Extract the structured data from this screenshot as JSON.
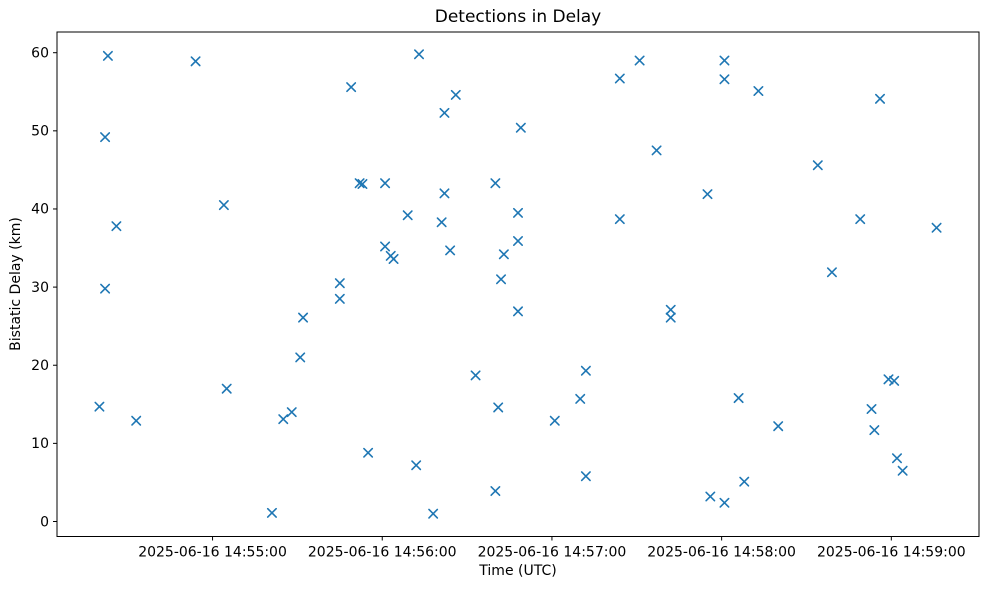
{
  "chart_data": {
    "type": "scatter",
    "title": "Detections in Delay",
    "xlabel": "Time (UTC)",
    "ylabel": "Bistatic Delay (km)",
    "marker": "x",
    "marker_color": "#1f77b4",
    "background_color": "#ffffff",
    "grid": false,
    "legend": "none",
    "date": "2025-06-16",
    "x_tick_labels": [
      "2025-06-16 14:55:00",
      "2025-06-16 14:56:00",
      "2025-06-16 14:57:00",
      "2025-06-16 14:58:00",
      "2025-06-16 14:59:00"
    ],
    "y_ticks": [
      0,
      10,
      20,
      30,
      40,
      50,
      60
    ],
    "x_limits": [
      "14:54:05",
      "14:59:31"
    ],
    "y_limits": [
      -1.92,
      62.65
    ],
    "points": [
      [
        "14:54:20",
        14.7
      ],
      [
        "14:54:22",
        49.2
      ],
      [
        "14:54:22",
        29.8
      ],
      [
        "14:54:23",
        59.6
      ],
      [
        "14:54:26",
        37.8
      ],
      [
        "14:54:33",
        12.9
      ],
      [
        "14:54:54",
        58.9
      ],
      [
        "14:55:04",
        40.5
      ],
      [
        "14:55:05",
        17.0
      ],
      [
        "14:55:21",
        1.1
      ],
      [
        "14:55:25",
        13.1
      ],
      [
        "14:55:28",
        14.0
      ],
      [
        "14:55:31",
        21.0
      ],
      [
        "14:55:32",
        26.1
      ],
      [
        "14:55:45",
        30.5
      ],
      [
        "14:55:45",
        28.5
      ],
      [
        "14:55:49",
        55.6
      ],
      [
        "14:55:52",
        43.3
      ],
      [
        "14:55:53",
        43.2
      ],
      [
        "14:55:55",
        8.8
      ],
      [
        "14:56:01",
        43.3
      ],
      [
        "14:56:01",
        35.2
      ],
      [
        "14:56:03",
        34.0
      ],
      [
        "14:56:04",
        33.6
      ],
      [
        "14:56:09",
        39.2
      ],
      [
        "14:56:12",
        7.2
      ],
      [
        "14:56:13",
        59.8
      ],
      [
        "14:56:18",
        1.0
      ],
      [
        "14:56:21",
        38.3
      ],
      [
        "14:56:22",
        52.3
      ],
      [
        "14:56:22",
        42.0
      ],
      [
        "14:56:24",
        34.7
      ],
      [
        "14:56:26",
        54.6
      ],
      [
        "14:56:33",
        18.7
      ],
      [
        "14:56:40",
        43.3
      ],
      [
        "14:56:40",
        3.9
      ],
      [
        "14:56:41",
        14.6
      ],
      [
        "14:56:42",
        31.0
      ],
      [
        "14:56:43",
        34.2
      ],
      [
        "14:56:48",
        39.5
      ],
      [
        "14:56:48",
        35.9
      ],
      [
        "14:56:48",
        26.9
      ],
      [
        "14:56:49",
        50.4
      ],
      [
        "14:57:01",
        12.9
      ],
      [
        "14:57:10",
        15.7
      ],
      [
        "14:57:12",
        19.3
      ],
      [
        "14:57:12",
        5.8
      ],
      [
        "14:57:24",
        56.7
      ],
      [
        "14:57:24",
        38.7
      ],
      [
        "14:57:31",
        59.0
      ],
      [
        "14:57:37",
        47.5
      ],
      [
        "14:57:42",
        27.1
      ],
      [
        "14:57:42",
        26.1
      ],
      [
        "14:57:55",
        41.9
      ],
      [
        "14:57:56",
        3.2
      ],
      [
        "14:58:01",
        59.0
      ],
      [
        "14:58:01",
        56.6
      ],
      [
        "14:58:01",
        2.4
      ],
      [
        "14:58:06",
        15.8
      ],
      [
        "14:58:08",
        5.1
      ],
      [
        "14:58:13",
        55.1
      ],
      [
        "14:58:20",
        12.2
      ],
      [
        "14:58:34",
        45.6
      ],
      [
        "14:58:39",
        31.9
      ],
      [
        "14:58:49",
        38.7
      ],
      [
        "14:58:53",
        14.4
      ],
      [
        "14:58:54",
        11.7
      ],
      [
        "14:58:56",
        54.1
      ],
      [
        "14:58:59",
        18.2
      ],
      [
        "14:59:01",
        18.0
      ],
      [
        "14:59:02",
        8.1
      ],
      [
        "14:59:04",
        6.5
      ],
      [
        "14:59:16",
        37.6
      ]
    ]
  }
}
